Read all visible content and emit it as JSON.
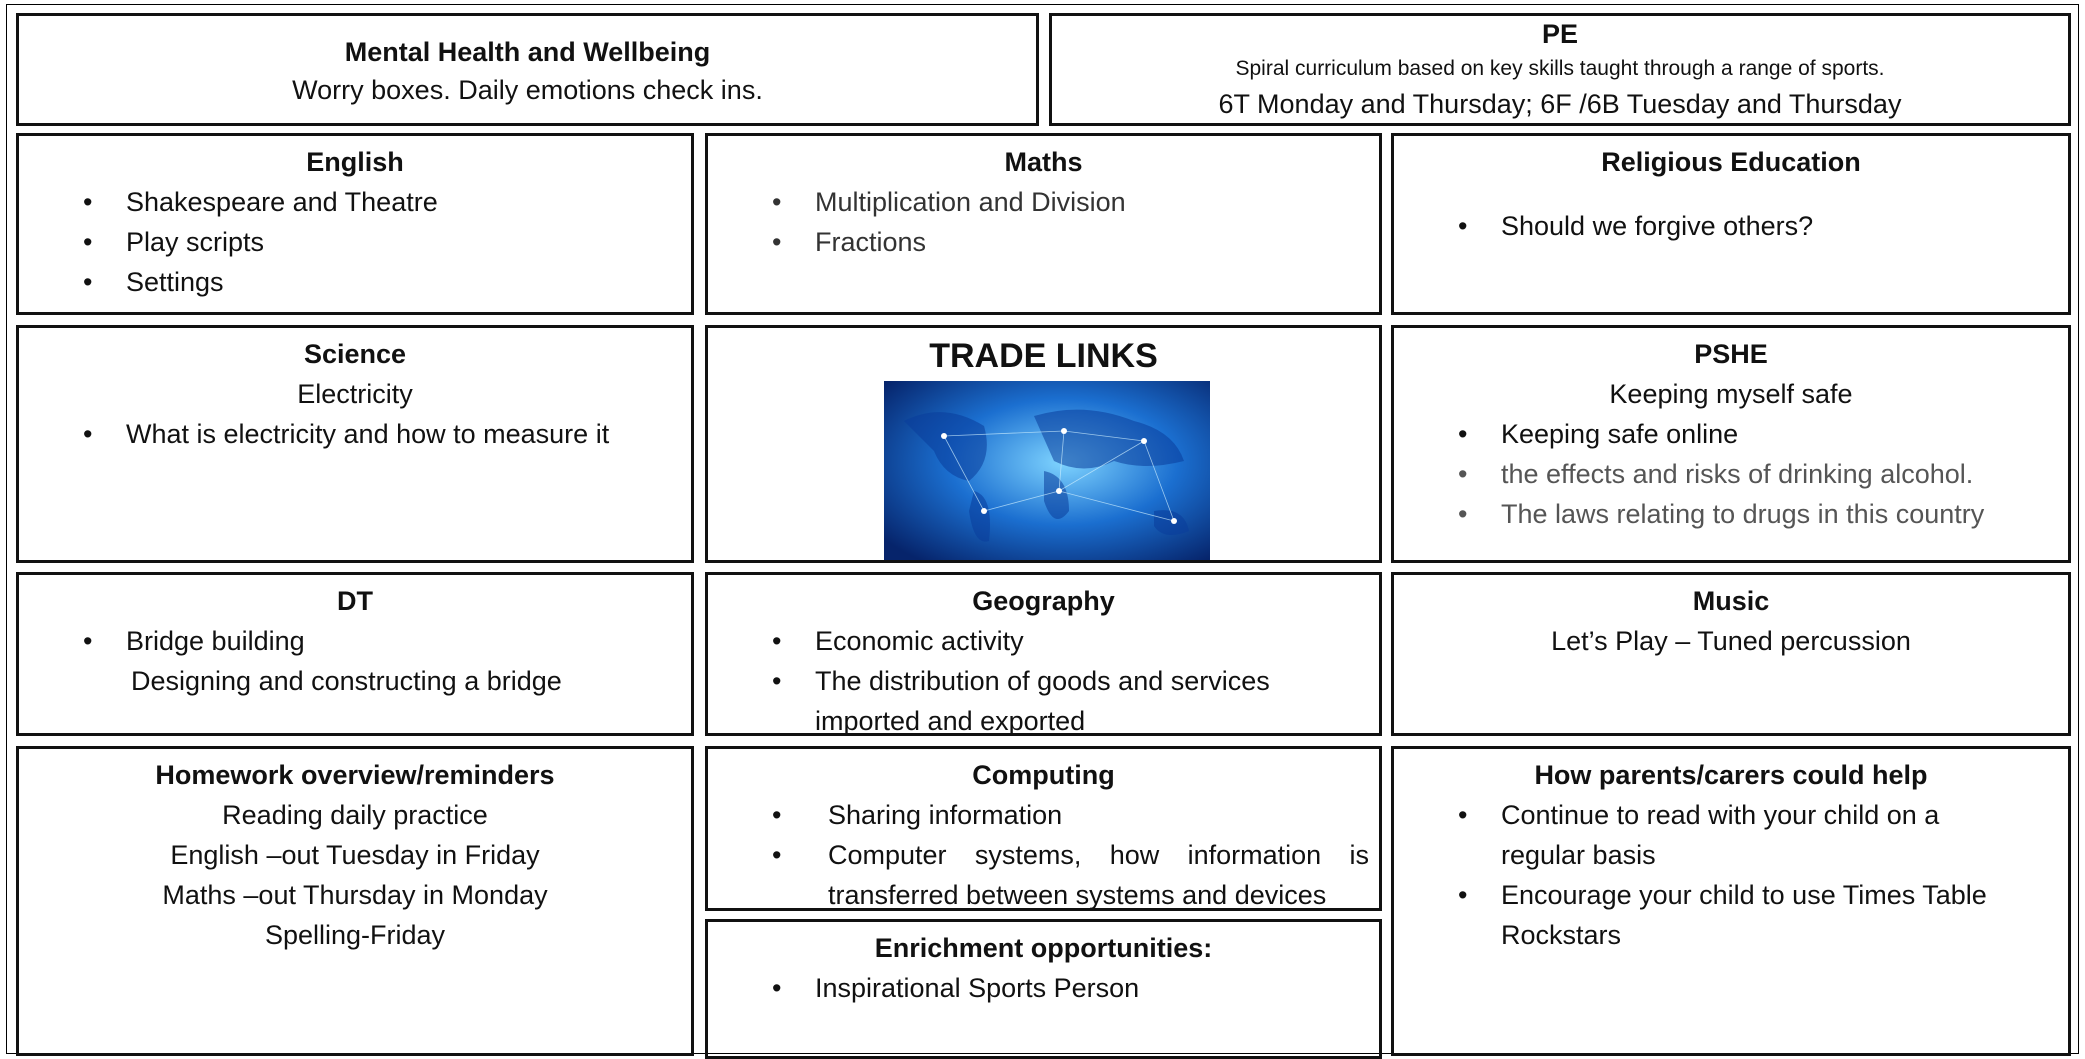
{
  "mental_health": {
    "title": "Mental Health and Wellbeing",
    "text": "Worry boxes. Daily emotions check ins."
  },
  "pe": {
    "title": "PE",
    "lines": [
      "Spiral curriculum based on key skills taught through a range of sports.",
      "6T Monday and Thursday; 6F /6B Tuesday and Thursday"
    ]
  },
  "english": {
    "title": "English",
    "bullets": [
      "Shakespeare and Theatre",
      "Play scripts",
      "Settings"
    ]
  },
  "maths": {
    "title": "Maths",
    "bullets": [
      "Multiplication and Division",
      "Fractions"
    ]
  },
  "religious_education": {
    "title": "Religious Education",
    "bullets": [
      "Should we forgive others?"
    ]
  },
  "science": {
    "title": "Science",
    "subtitle": "Electricity",
    "bullets": [
      "What is electricity and how to measure it"
    ]
  },
  "trade_links": {
    "title": "TRADE LINKS"
  },
  "pshe": {
    "title": "PSHE",
    "subtitle": "Keeping myself safe",
    "bullets": [
      "Keeping safe online",
      "the effects and risks of drinking alcohol.",
      "The laws relating to drugs in this country"
    ]
  },
  "dt": {
    "title": "DT",
    "bullets": [
      "Bridge building"
    ],
    "note": "Designing and constructing a bridge"
  },
  "geography": {
    "title": "Geography",
    "bullets": [
      "Economic activity",
      "The distribution of goods and services imported and exported"
    ]
  },
  "music": {
    "title": "Music",
    "subtitle": "Let’s Play – Tuned percussion"
  },
  "homework": {
    "title": "Homework overview/reminders",
    "lines": [
      "Reading daily practice",
      "English –out Tuesday in Friday",
      "Maths –out Thursday in Monday",
      "Spelling-Friday"
    ]
  },
  "computing": {
    "title": "Computing",
    "bullets": [
      "Sharing information",
      "Computer systems, how information is transferred between systems and devices"
    ]
  },
  "enrichment": {
    "title": "Enrichment opportunities:",
    "bullets": [
      "Inspirational Sports Person"
    ]
  },
  "parents": {
    "title": "How parents/carers could help",
    "bullets": [
      "Continue to read with your child on a regular basis",
      "Encourage your child to use Times Table Rockstars"
    ]
  }
}
